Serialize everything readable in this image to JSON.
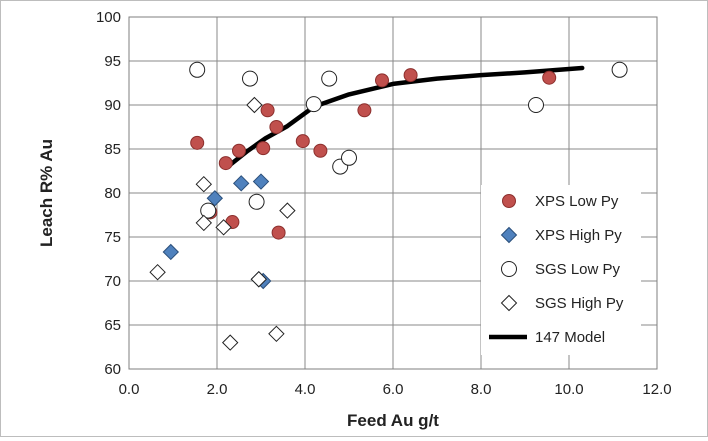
{
  "chart_data": {
    "type": "scatter",
    "title": "",
    "xlabel": "Feed Au g/t",
    "ylabel": "Leach R% Au",
    "xlim": [
      0.0,
      12.0
    ],
    "ylim": [
      60,
      100
    ],
    "x_ticks": [
      0.0,
      2.0,
      4.0,
      6.0,
      8.0,
      10.0,
      12.0
    ],
    "x_tick_labels": [
      "0.0",
      "2.0",
      "4.0",
      "6.0",
      "8.0",
      "10.0",
      "12.0"
    ],
    "y_ticks": [
      60,
      65,
      70,
      75,
      80,
      85,
      90,
      95,
      100
    ],
    "y_tick_labels": [
      "60",
      "65",
      "70",
      "75",
      "80",
      "85",
      "90",
      "95",
      "100"
    ],
    "grid": true,
    "legend_position": "right",
    "series": [
      {
        "name": "XPS Low Py",
        "marker": "circle-filled",
        "color": "#c0504d",
        "edge": "#8c2f2d",
        "points": [
          [
            1.55,
            85.7
          ],
          [
            1.85,
            77.8
          ],
          [
            2.2,
            83.4
          ],
          [
            2.35,
            76.7
          ],
          [
            2.5,
            84.8
          ],
          [
            3.05,
            85.1
          ],
          [
            3.15,
            89.4
          ],
          [
            3.35,
            87.5
          ],
          [
            3.4,
            75.5
          ],
          [
            3.95,
            85.9
          ],
          [
            4.35,
            84.8
          ],
          [
            5.35,
            89.4
          ],
          [
            5.75,
            92.8
          ],
          [
            6.4,
            93.4
          ],
          [
            9.55,
            93.1
          ]
        ]
      },
      {
        "name": "XPS High Py",
        "marker": "diamond-filled",
        "color": "#4f81bd",
        "edge": "#2b4f7a",
        "points": [
          [
            0.95,
            73.3
          ],
          [
            1.95,
            79.4
          ],
          [
            2.55,
            81.1
          ],
          [
            3.0,
            81.3
          ],
          [
            2.95,
            70.2
          ],
          [
            3.05,
            70.0
          ]
        ]
      },
      {
        "name": "SGS Low Py",
        "marker": "circle-open",
        "color": "#ffffff",
        "edge": "#222222",
        "points": [
          [
            1.55,
            94.0
          ],
          [
            1.8,
            78.0
          ],
          [
            2.75,
            93.0
          ],
          [
            2.9,
            79.0
          ],
          [
            4.2,
            90.1
          ],
          [
            4.55,
            93.0
          ],
          [
            4.8,
            83.0
          ],
          [
            5.0,
            84.0
          ],
          [
            9.25,
            90.0
          ],
          [
            11.15,
            94.0
          ]
        ]
      },
      {
        "name": "SGS High Py",
        "marker": "diamond-open",
        "color": "#ffffff",
        "edge": "#222222",
        "points": [
          [
            0.65,
            71.0
          ],
          [
            1.7,
            81.0
          ],
          [
            1.7,
            76.6
          ],
          [
            2.15,
            76.1
          ],
          [
            2.3,
            63.0
          ],
          [
            2.85,
            90.0
          ],
          [
            2.95,
            70.2
          ],
          [
            3.35,
            64.0
          ],
          [
            3.6,
            78.0
          ]
        ]
      },
      {
        "name": "147 Model",
        "marker": "line",
        "color": "#000000",
        "points": [
          [
            2.3,
            83.2
          ],
          [
            2.7,
            84.8
          ],
          [
            3.1,
            86.2
          ],
          [
            3.6,
            87.6
          ],
          [
            4.2,
            89.8
          ],
          [
            5.0,
            91.2
          ],
          [
            6.0,
            92.4
          ],
          [
            7.0,
            93.0
          ],
          [
            8.0,
            93.4
          ],
          [
            9.0,
            93.7
          ],
          [
            10.3,
            94.2
          ]
        ]
      }
    ]
  }
}
